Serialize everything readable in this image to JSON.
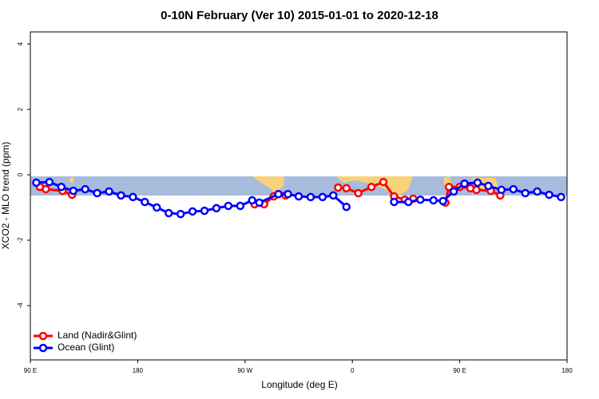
{
  "chart_data": {
    "type": "line",
    "title": "0-10N February (Ver 10)   2015-01-01 to 2020-12-18",
    "x_label": "Longitude (deg E)",
    "y_label": "XCO2 - MLO trend (ppm)",
    "xlim": [
      90,
      540
    ],
    "xticks": [
      {
        "value": 90,
        "label": "90 E"
      },
      {
        "value": 180,
        "label": "180"
      },
      {
        "value": 270,
        "label": "90 W"
      },
      {
        "value": 360,
        "label": "0"
      },
      {
        "value": 450,
        "label": "90 E"
      },
      {
        "value": 540,
        "label": "180"
      }
    ],
    "ylim": [
      -5.66,
      4.37
    ],
    "yticks": [
      -4,
      -2,
      0,
      2,
      4
    ],
    "legend": "bottom-left",
    "series": [
      {
        "name": "Land (Nadir&Glint)",
        "color": "#ff0000",
        "x": [
          98,
          103,
          117,
          125,
          null,
          278,
          286,
          294,
          304,
          null,
          348,
          355,
          365,
          376,
          386,
          395,
          404,
          411,
          null,
          438,
          441,
          450,
          459,
          464,
          476,
          484
        ],
        "values": [
          -0.37,
          -0.44,
          -0.49,
          -0.61,
          null,
          -0.9,
          -0.9,
          -0.66,
          -0.63,
          null,
          -0.39,
          -0.41,
          -0.56,
          -0.37,
          -0.22,
          -0.66,
          -0.76,
          -0.73,
          null,
          -0.85,
          -0.37,
          -0.37,
          -0.41,
          -0.46,
          -0.49,
          -0.63
        ]
      },
      {
        "name": "Ocean (Glint)",
        "color": "#0000ff",
        "x": [
          95,
          106,
          116,
          126,
          136,
          146,
          156,
          166,
          176,
          186,
          196,
          206,
          216,
          226,
          236,
          246,
          256,
          266,
          276,
          282,
          298,
          306,
          315,
          325,
          335,
          344,
          355,
          null,
          395,
          407,
          417,
          428,
          436,
          445,
          454,
          465,
          474,
          485,
          495,
          505,
          515,
          525,
          535
        ],
        "values": [
          -0.24,
          -0.22,
          -0.37,
          -0.49,
          -0.44,
          -0.56,
          -0.51,
          -0.63,
          -0.68,
          -0.83,
          -1.0,
          -1.17,
          -1.2,
          -1.12,
          -1.1,
          -1.02,
          -0.95,
          -0.95,
          -0.78,
          -0.85,
          -0.59,
          -0.59,
          -0.66,
          -0.68,
          -0.68,
          -0.63,
          -0.98,
          null,
          -0.83,
          -0.83,
          -0.76,
          -0.78,
          -0.8,
          -0.51,
          -0.27,
          -0.24,
          -0.34,
          -0.46,
          -0.44,
          -0.56,
          -0.51,
          -0.61,
          -0.68
        ]
      }
    ]
  }
}
